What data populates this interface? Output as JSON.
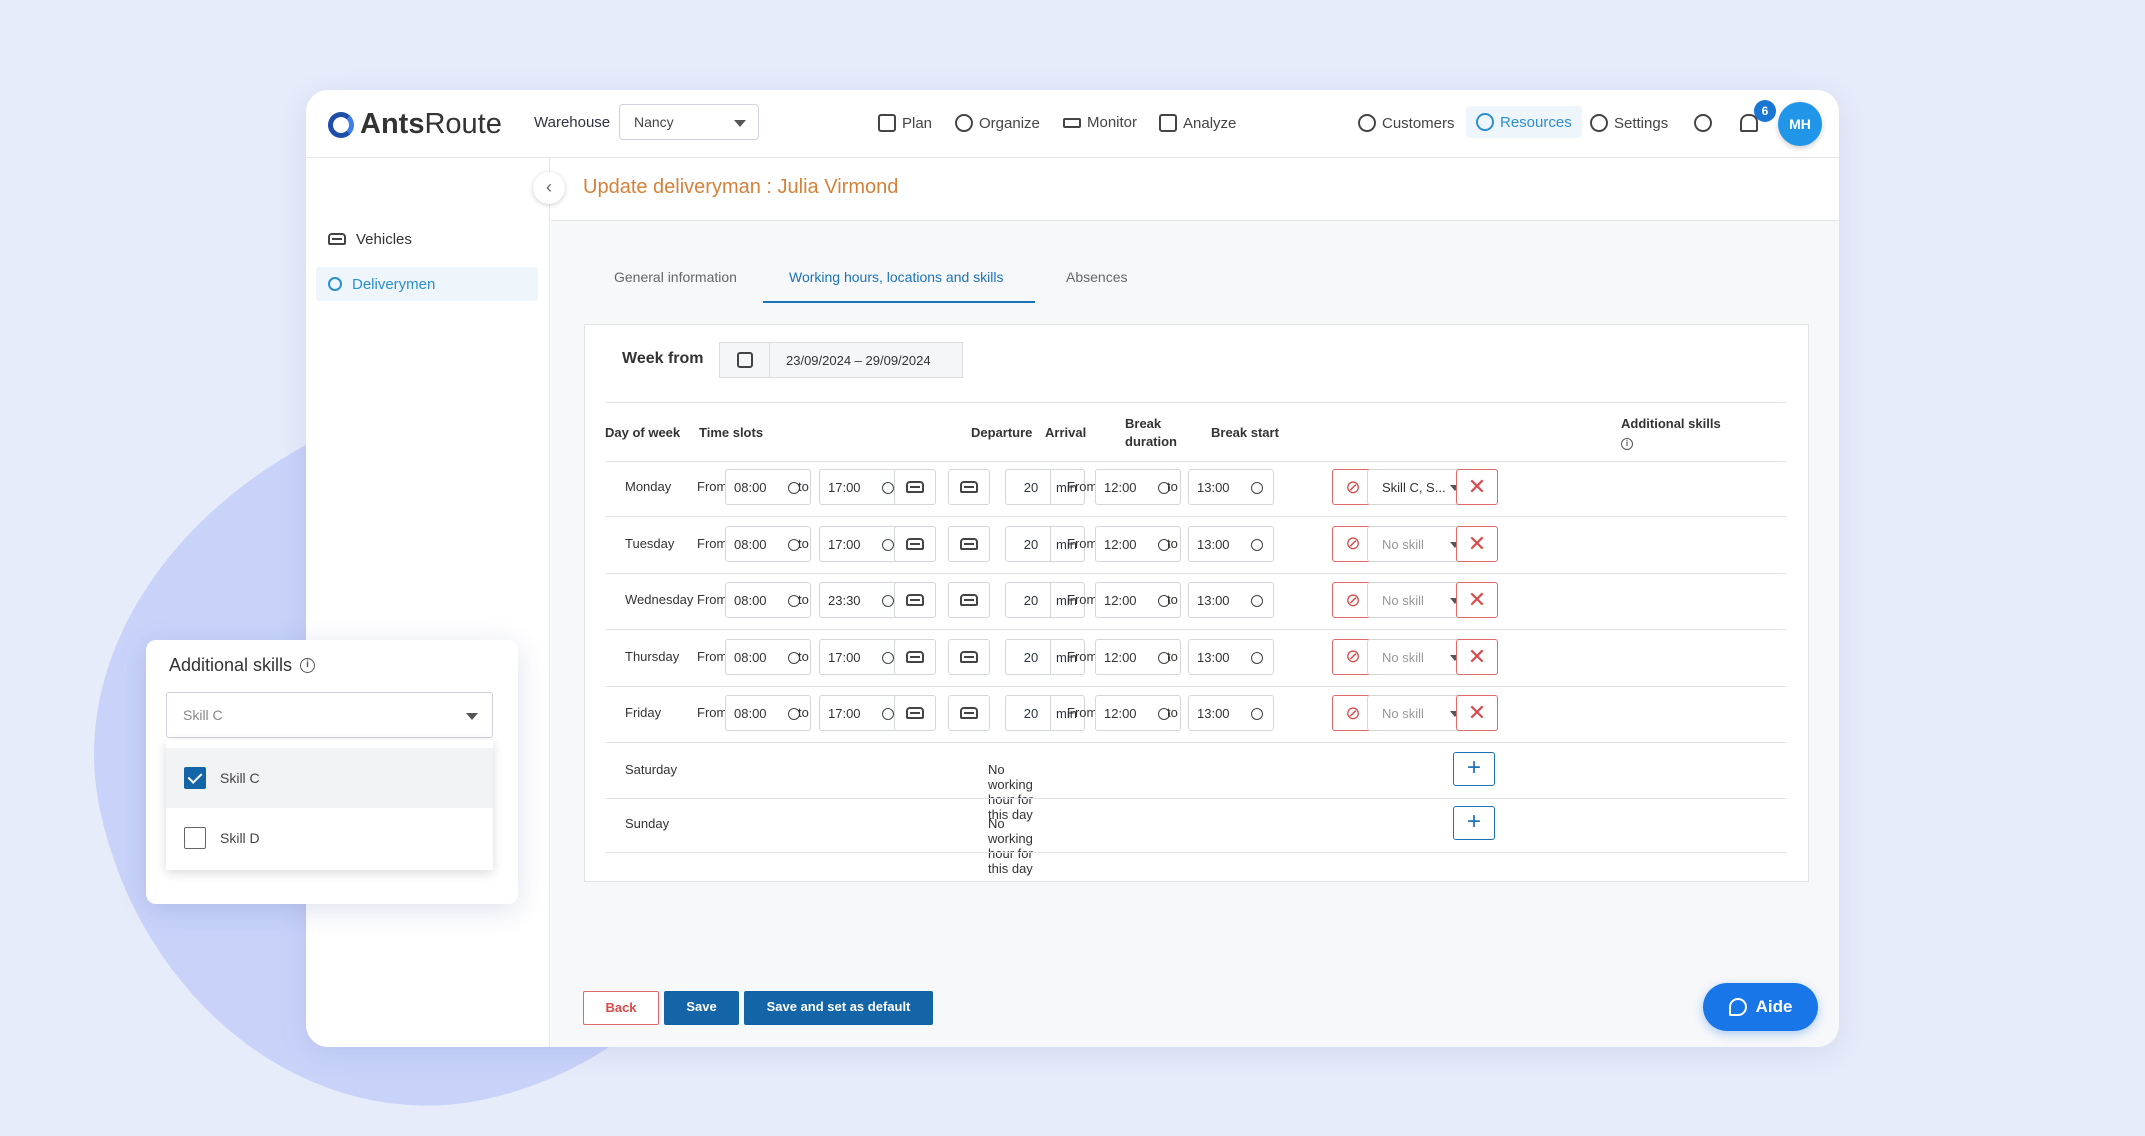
{
  "app": {
    "logo_bold": "Ants",
    "logo_rest": "Route"
  },
  "header": {
    "warehouse_label": "Warehouse",
    "warehouse_value": "Nancy",
    "nav": [
      "Plan",
      "Organize",
      "Monitor",
      "Analyze"
    ],
    "right_nav": [
      "Customers",
      "Resources",
      "Settings"
    ],
    "notification_count": "6",
    "avatar_initials": "MH"
  },
  "sidebar": {
    "items": [
      "Vehicles",
      "Deliverymen"
    ]
  },
  "page": {
    "title": "Update deliveryman : Julia Virmond"
  },
  "tabs": [
    "General information",
    "Working hours, locations and skills",
    "Absences"
  ],
  "week": {
    "label": "Week from",
    "range": "23/09/2024 – 29/09/2024"
  },
  "table": {
    "headers": {
      "day": "Day of week",
      "slots": "Time slots",
      "departure": "Departure",
      "arrival": "Arrival",
      "break_duration_1": "Break",
      "break_duration_2": "duration",
      "break_start": "Break start",
      "skills": "Additional skills"
    },
    "from_label": "From",
    "to_label": "to",
    "min_label": "min",
    "rows": [
      {
        "day": "Monday",
        "from": "08:00",
        "to": "17:00",
        "break": "20",
        "bfrom": "12:00",
        "bto": "13:00",
        "skill": "Skill C, S..."
      },
      {
        "day": "Tuesday",
        "from": "08:00",
        "to": "17:00",
        "break": "20",
        "bfrom": "12:00",
        "bto": "13:00",
        "skill": "No skill"
      },
      {
        "day": "Wednesday",
        "from": "08:00",
        "to": "23:30",
        "break": "20",
        "bfrom": "12:00",
        "bto": "13:00",
        "skill": "No skill"
      },
      {
        "day": "Thursday",
        "from": "08:00",
        "to": "17:00",
        "break": "20",
        "bfrom": "12:00",
        "bto": "13:00",
        "skill": "No skill"
      },
      {
        "day": "Friday",
        "from": "08:00",
        "to": "17:00",
        "break": "20",
        "bfrom": "12:00",
        "bto": "13:00",
        "skill": "No skill"
      }
    ],
    "off_days": [
      {
        "day": "Saturday",
        "note": "No working hour for this day"
      },
      {
        "day": "Sunday",
        "note": "No working hour for this day"
      }
    ]
  },
  "actions": {
    "back": "Back",
    "save": "Save",
    "save_default": "Save and set as default"
  },
  "help": {
    "label": "Aide"
  },
  "popover": {
    "title": "Additional skills",
    "selected_value": "Skill C",
    "options": [
      {
        "label": "Skill C",
        "checked": true
      },
      {
        "label": "Skill D",
        "checked": false
      }
    ]
  },
  "colors": {
    "primary": "#1465a8",
    "accent": "#2b8fd0",
    "title": "#d4813a",
    "danger": "#d94a4a",
    "help": "#1976e8"
  }
}
